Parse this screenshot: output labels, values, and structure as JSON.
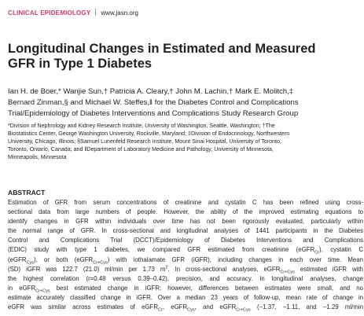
{
  "header": {
    "section": "CLINICAL EPIDEMIOLOGY",
    "url": "www.jasn.org"
  },
  "title": [
    "Longitudinal Changes in Estimated and Measured",
    "GFR in Type 1 Diabetes"
  ],
  "authors": [
    "Ian H. de Boer,* Wanjie Sun,† Patricia A. Cleary,† John M. Lachin,† Mark E. Molitch,‡",
    "Bernard Zinman,§ and Michael W. Steffes,‖ for the Diabetes Control and Complications",
    "Trial/Epidemiology of Diabetes Interventions and Complications Study Research Group"
  ],
  "affiliations": [
    "*Division of Nephrology and Kidney Research Institute, University of Washington, Seattle, Washington; †The",
    "Biostatistics Center, George Washington University, Rockville, Maryland; ‡Division of Endocrinology, Northwestern",
    "University, Chicago, Illinois; §Samuel Lunenfeld Research Institute, Mount Sinai Hospital, University of Toronto,",
    "Toronto, Ontario, Canada; and ‖Department of Laboratory Medicine and Pathology, University of Minnesota,",
    "Minneapolis, Minnesota"
  ],
  "abstract": {
    "heading": "ABSTRACT",
    "lines": [
      [
        "Estimation of GFR from serum concentrations of creatinine and cystatin C has been refined using cross-"
      ],
      [
        "sectional data from large numbers of people. However, the ability of the improved estimating equations to"
      ],
      [
        "identify changes in GFR within individuals over time has not been rigorously evaluated, particularly within"
      ],
      [
        "the normal range of GFR. In cross-sectional and longitudinal analyses of 1441 participants in the Diabetes"
      ],
      [
        "Control and Complications Trial (DCCT)/Epidemiology of Diabetes Interventions and Complications"
      ],
      [
        "(EDIC) study with type 1 diabetes, we compared GFR estimated from creatinine (eGFR",
        {
          "sub": "Cr"
        },
        "), cystatin C"
      ],
      [
        "(eGFR",
        {
          "sub": "Cys"
        },
        "), or both (eGFR",
        {
          "sub": "Cr+Cys"
        },
        ") with iothalamate GFR (iGFR), including changes in each over time. Mean"
      ],
      [
        "(SD) iGFR was 122.7 (21.0) ml/min per 1.73 m",
        {
          "sup": "2"
        },
        ". In cross-sectional analyses, eGFR",
        {
          "sub": "Cr+Cys"
        },
        " estimated iGFR with"
      ],
      [
        "the highest correlation (r=0.48 versus 0.39–0.42), precision, and accuracy. In longitudinal analyses, change"
      ],
      [
        "in eGFR",
        {
          "sub": "Cr+Cys"
        },
        " best estimated change in iGFR; however, differences between estimates were small, and no"
      ],
      [
        "estimate accurately classified change in iGFR. Over a median 23 years of follow-up, mean rate of change in"
      ],
      [
        "eGFR was similar across estimates of eGFR",
        {
          "sub": "Cr"
        },
        ", eGFR",
        {
          "sub": "Cys"
        },
        ", and eGFR",
        {
          "sub": "Cr+Cys"
        },
        " (−1.37, −1.11, and −1.29 ml/min"
      ]
    ]
  }
}
